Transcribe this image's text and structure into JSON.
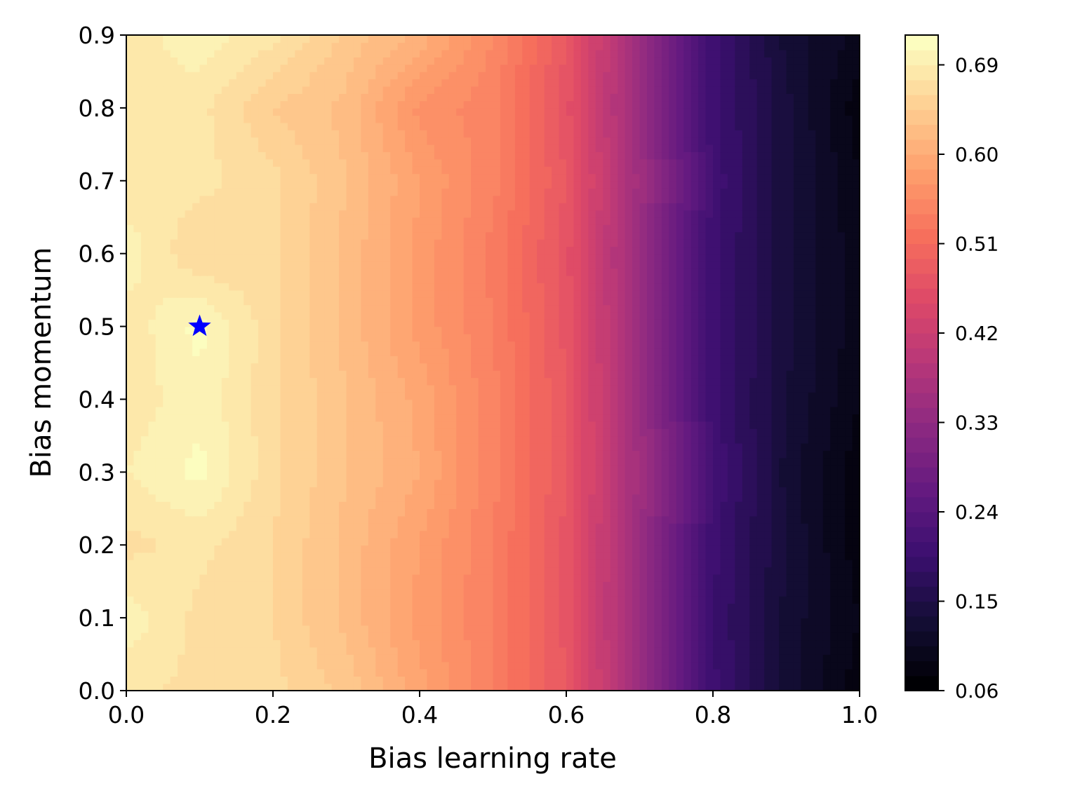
{
  "chart_data": {
    "type": "heatmap",
    "subtype": "filled-contour",
    "title": "",
    "xlabel": "Bias learning rate",
    "ylabel": "Bias momentum",
    "xlim": [
      0.0,
      1.0
    ],
    "ylim": [
      0.0,
      0.9
    ],
    "x_ticks": [
      "0.0",
      "0.2",
      "0.4",
      "0.6",
      "0.8",
      "1.0"
    ],
    "y_ticks": [
      "0.0",
      "0.1",
      "0.2",
      "0.3",
      "0.4",
      "0.5",
      "0.6",
      "0.7",
      "0.8",
      "0.9"
    ],
    "x": [
      0.0,
      0.1,
      0.2,
      0.3,
      0.4,
      0.5,
      0.6,
      0.7,
      0.8,
      0.9,
      1.0
    ],
    "y": [
      0.0,
      0.1,
      0.2,
      0.3,
      0.4,
      0.5,
      0.6,
      0.7,
      0.8,
      0.9
    ],
    "z": [
      [
        0.68,
        0.67,
        0.665,
        0.64,
        0.59,
        0.54,
        0.48,
        0.35,
        0.2,
        0.13,
        0.08
      ],
      [
        0.7,
        0.67,
        0.66,
        0.625,
        0.58,
        0.54,
        0.475,
        0.345,
        0.195,
        0.13,
        0.09
      ],
      [
        0.67,
        0.68,
        0.66,
        0.625,
        0.585,
        0.54,
        0.475,
        0.35,
        0.2,
        0.135,
        0.08
      ],
      [
        0.69,
        0.71,
        0.665,
        0.63,
        0.6,
        0.545,
        0.48,
        0.355,
        0.21,
        0.13,
        0.08
      ],
      [
        0.68,
        0.7,
        0.665,
        0.63,
        0.595,
        0.545,
        0.48,
        0.35,
        0.2,
        0.135,
        0.09
      ],
      [
        0.68,
        0.71,
        0.665,
        0.625,
        0.58,
        0.54,
        0.475,
        0.35,
        0.2,
        0.14,
        0.095
      ],
      [
        0.7,
        0.66,
        0.665,
        0.625,
        0.58,
        0.535,
        0.47,
        0.345,
        0.2,
        0.14,
        0.095
      ],
      [
        0.68,
        0.68,
        0.665,
        0.63,
        0.585,
        0.545,
        0.48,
        0.355,
        0.205,
        0.14,
        0.09
      ],
      [
        0.69,
        0.68,
        0.645,
        0.625,
        0.565,
        0.545,
        0.47,
        0.345,
        0.2,
        0.14,
        0.08
      ],
      [
        0.68,
        0.7,
        0.68,
        0.64,
        0.61,
        0.555,
        0.48,
        0.35,
        0.2,
        0.13,
        0.1
      ]
    ],
    "levels": [
      0.06,
      0.075,
      0.09,
      0.105,
      0.12,
      0.135,
      0.15,
      0.165,
      0.18,
      0.195,
      0.21,
      0.225,
      0.24,
      0.255,
      0.27,
      0.285,
      0.3,
      0.315,
      0.33,
      0.345,
      0.36,
      0.375,
      0.39,
      0.405,
      0.42,
      0.435,
      0.45,
      0.465,
      0.48,
      0.495,
      0.51,
      0.525,
      0.54,
      0.555,
      0.57,
      0.585,
      0.6,
      0.615,
      0.63,
      0.645,
      0.66,
      0.675,
      0.69,
      0.705,
      0.72
    ],
    "colormap": "magma",
    "colorbar_ticks": [
      "0.06",
      "0.15",
      "0.24",
      "0.33",
      "0.42",
      "0.51",
      "0.60",
      "0.69"
    ],
    "colorbar_tick_values": [
      0.06,
      0.15,
      0.24,
      0.33,
      0.42,
      0.51,
      0.6,
      0.69
    ],
    "marker": {
      "x": 0.1,
      "y": 0.5,
      "shape": "star",
      "color": "#0000ff"
    },
    "grid": false,
    "legend": "none"
  }
}
